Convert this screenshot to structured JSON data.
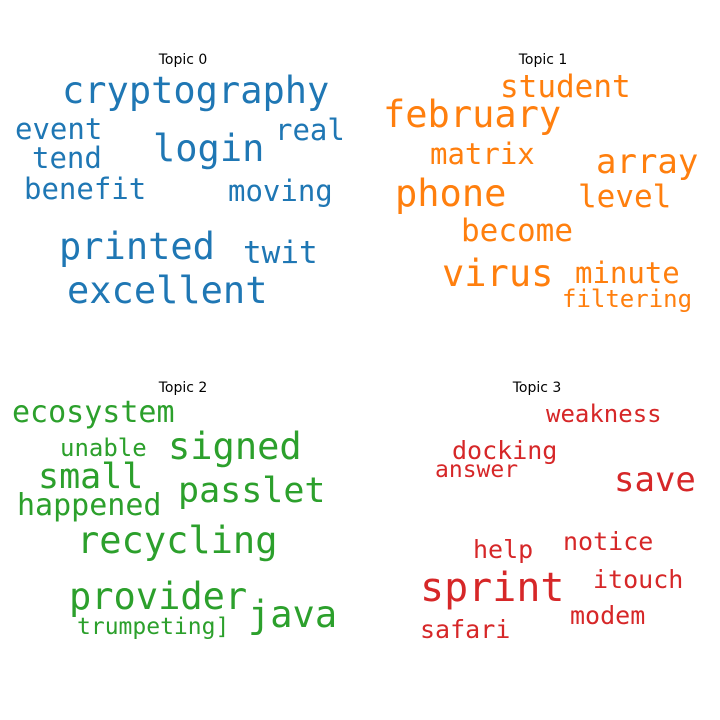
{
  "chart_data": [
    {
      "type": "wordcloud",
      "title": "Topic 0",
      "color": "#1f77b4",
      "words": [
        "cryptography",
        "login",
        "excellent",
        "printed",
        "event",
        "real",
        "tend",
        "benefit",
        "moving",
        "twit"
      ]
    },
    {
      "type": "wordcloud",
      "title": "Topic 1",
      "color": "#ff7f0e",
      "words": [
        "february",
        "phone",
        "virus",
        "student",
        "matrix",
        "array",
        "level",
        "become",
        "minute",
        "filtering"
      ]
    },
    {
      "type": "wordcloud",
      "title": "Topic 2",
      "color": "#2ca02c",
      "words": [
        "signed",
        "provider",
        "recycling",
        "ecosystem",
        "small",
        "passlet",
        "happened",
        "unable",
        "java",
        "trumpeting]"
      ]
    },
    {
      "type": "wordcloud",
      "title": "Topic 3",
      "color": "#d62728",
      "words": [
        "sprint",
        "save",
        "weakness",
        "docking",
        "answer",
        "help",
        "notice",
        "itouch",
        "modem",
        "safari"
      ]
    }
  ]
}
